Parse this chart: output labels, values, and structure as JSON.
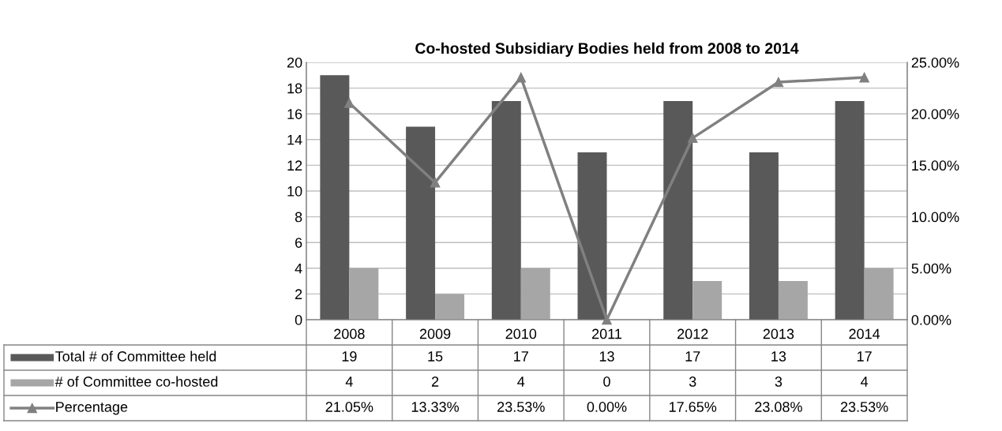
{
  "chart_data": {
    "type": "bar",
    "title": "Co-hosted Subsidiary Bodies held from 2008 to 2014",
    "categories": [
      "2008",
      "2009",
      "2010",
      "2011",
      "2012",
      "2013",
      "2014"
    ],
    "series": [
      {
        "name": "Total # of Committee held",
        "color": "#595959",
        "values": [
          19,
          15,
          17,
          13,
          17,
          13,
          17
        ],
        "value_labels": [
          "19",
          "15",
          "17",
          "13",
          "17",
          "13",
          "17"
        ]
      },
      {
        "name": "# of Committee co-hosted",
        "color": "#a6a6a6",
        "values": [
          4,
          2,
          4,
          0,
          3,
          3,
          4
        ],
        "value_labels": [
          "4",
          "2",
          "4",
          "0",
          "3",
          "3",
          "4"
        ]
      },
      {
        "name": "Percentage",
        "type": "line",
        "axis": "y2",
        "color": "#808080",
        "marker": "triangle",
        "values": [
          21.05,
          13.33,
          23.53,
          0.0,
          17.65,
          23.08,
          23.53
        ],
        "value_labels": [
          "21.05%",
          "13.33%",
          "23.53%",
          "0.00%",
          "17.65%",
          "23.08%",
          "23.53%"
        ]
      }
    ],
    "ylim": [
      0,
      20
    ],
    "yticks": [
      0,
      2,
      4,
      6,
      8,
      10,
      12,
      14,
      16,
      18,
      20
    ],
    "y2lim": [
      0,
      25
    ],
    "y2ticks": [
      {
        "value": 0,
        "label": "0.00%"
      },
      {
        "value": 5,
        "label": "5.00%"
      },
      {
        "value": 10,
        "label": "10.00%"
      },
      {
        "value": 15,
        "label": "15.00%"
      },
      {
        "value": 20,
        "label": "20.00%"
      },
      {
        "value": 25,
        "label": "25.00%"
      }
    ],
    "grid": "y",
    "legend": "bottom"
  }
}
